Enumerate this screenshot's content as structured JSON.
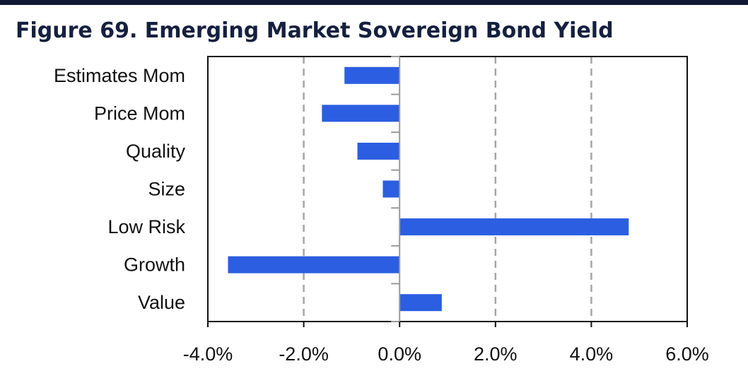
{
  "title": "Figure 69. Emerging Market Sovereign Bond Yield",
  "colors": {
    "bar": "#2b5ee0",
    "title": "#15203f",
    "top_rule": "#0f1733",
    "grid": "#a6a6a6",
    "axis": "#111111"
  },
  "chart_data": {
    "type": "bar",
    "orientation": "horizontal",
    "categories": [
      "Estimates Mom",
      "Price Mom",
      "Quality",
      "Size",
      "Low Risk",
      "Growth",
      "Value"
    ],
    "values": [
      -1.15,
      -1.62,
      -0.88,
      -0.35,
      4.78,
      -3.58,
      0.88
    ],
    "value_unit": "%",
    "xlim": [
      -4.0,
      6.0
    ],
    "xticks": [
      -4.0,
      -2.0,
      0.0,
      2.0,
      4.0,
      6.0
    ],
    "xtick_labels": [
      "-4.0%",
      "-2.0%",
      "0.0%",
      "2.0%",
      "4.0%",
      "6.0%"
    ],
    "grid": "vertical dashed",
    "legend": "none",
    "xlabel": "",
    "ylabel": ""
  }
}
